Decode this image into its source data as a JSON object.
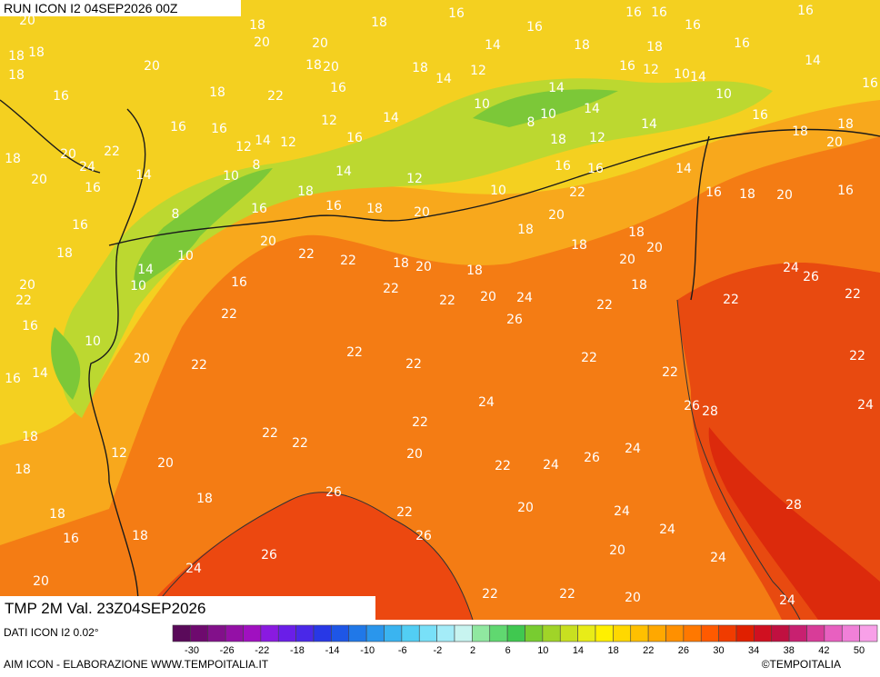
{
  "header": {
    "run": "RUN ICON I2 04SEP2026 00Z",
    "valid": "TMP 2M Val. 23Z04SEP2026"
  },
  "footer": {
    "source": "DATI ICON I2 0.02°",
    "credit": "AIM ICON - ELABORAZIONE WWW.TEMPOITALIA.IT",
    "copyright": "©TEMPOITALIA"
  },
  "map": {
    "labels": [
      20,
      18,
      18,
      18,
      20,
      16,
      18,
      22,
      18,
      20,
      20,
      20,
      18,
      18,
      16,
      14,
      16,
      18,
      16,
      16,
      16,
      18,
      16,
      16,
      14,
      16,
      14,
      10,
      10,
      12,
      16,
      14,
      12,
      14,
      18,
      16,
      14,
      12,
      16,
      12,
      14,
      12,
      16,
      16,
      20,
      22,
      24,
      14,
      20,
      18,
      16,
      10,
      8,
      18,
      14,
      12,
      10,
      8,
      10,
      14,
      14,
      18,
      12,
      16,
      16,
      22,
      20,
      10,
      20,
      18,
      16,
      16,
      18,
      8,
      16,
      20,
      22,
      22,
      18,
      20,
      18,
      18,
      18,
      18,
      20,
      20,
      18,
      14,
      16,
      18,
      20,
      16,
      18,
      20,
      18,
      16,
      14,
      10,
      10,
      16,
      22,
      20,
      22,
      16,
      10,
      20,
      14,
      16,
      18,
      18,
      12,
      20,
      18,
      18,
      16,
      18,
      20,
      24,
      26,
      22,
      22,
      20,
      24,
      26,
      22,
      22,
      24,
      26,
      22,
      22,
      22,
      24,
      26,
      28,
      22,
      24,
      22,
      22,
      22,
      22,
      22,
      22,
      20,
      22,
      24,
      26,
      24,
      26,
      22,
      20,
      24,
      24,
      28,
      26,
      20,
      24,
      22,
      22,
      20,
      24
    ]
  },
  "colorbar": {
    "labels": [
      -30,
      -26,
      -22,
      -18,
      -14,
      -10,
      -6,
      -2,
      2,
      6,
      10,
      14,
      18,
      22,
      26,
      30,
      34,
      38,
      42,
      50
    ],
    "colors": [
      "#5a0a5a",
      "#6e0a6e",
      "#82108a",
      "#9410a6",
      "#a010c0",
      "#8a1ae0",
      "#6a1ee8",
      "#4a28e8",
      "#2838e6",
      "#1e56e6",
      "#2078e8",
      "#2a96ec",
      "#3ab4f0",
      "#52cef4",
      "#78e0f8",
      "#a4ecf8",
      "#c8f4f0",
      "#90e8a0",
      "#60d870",
      "#40c850",
      "#78cc30",
      "#a0d428",
      "#c8e020",
      "#e8ec18",
      "#fff000",
      "#ffd800",
      "#ffc000",
      "#ffa800",
      "#ff9000",
      "#ff7800",
      "#ff5a00",
      "#f03c00",
      "#e02000",
      "#d01020",
      "#c01040",
      "#c82070",
      "#d83c98",
      "#e860c0",
      "#f080d8",
      "#f8a0e8"
    ]
  }
}
